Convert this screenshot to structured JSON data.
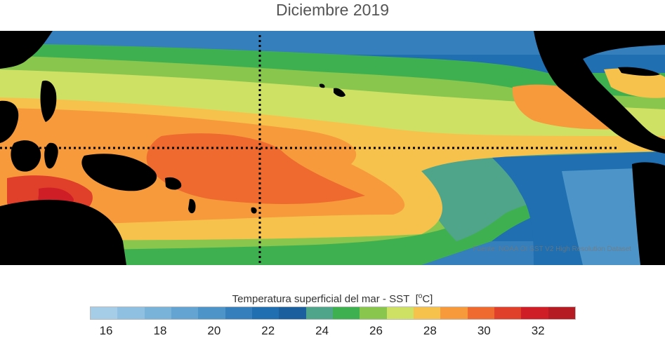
{
  "title": "Diciembre 2019",
  "source": "Fuente: NOAA OI SST V2 High Resolution Dataset",
  "legend": {
    "label": "Temperatura superficial del mar - SST",
    "unit_open": "[",
    "unit_deg": "o",
    "unit_c": "C]",
    "ticks": [
      "16",
      "18",
      "20",
      "22",
      "24",
      "26",
      "28",
      "30",
      "32"
    ],
    "colors": [
      "#a6cde8",
      "#8fc0e1",
      "#7ab3da",
      "#63a4d2",
      "#4d95c9",
      "#347fbc",
      "#1f6fb1",
      "#1c5f9f",
      "#4fa58a",
      "#3fb04f",
      "#88c64e",
      "#cfe164",
      "#f6c24c",
      "#f69a3c",
      "#ee6a2e",
      "#e0402a",
      "#d01e26",
      "#b51b22"
    ]
  },
  "colors": {
    "land": "#000000",
    "cold": "#1f6fb1",
    "warm": "#ee6a2e",
    "guide_lines": "#000000"
  }
}
